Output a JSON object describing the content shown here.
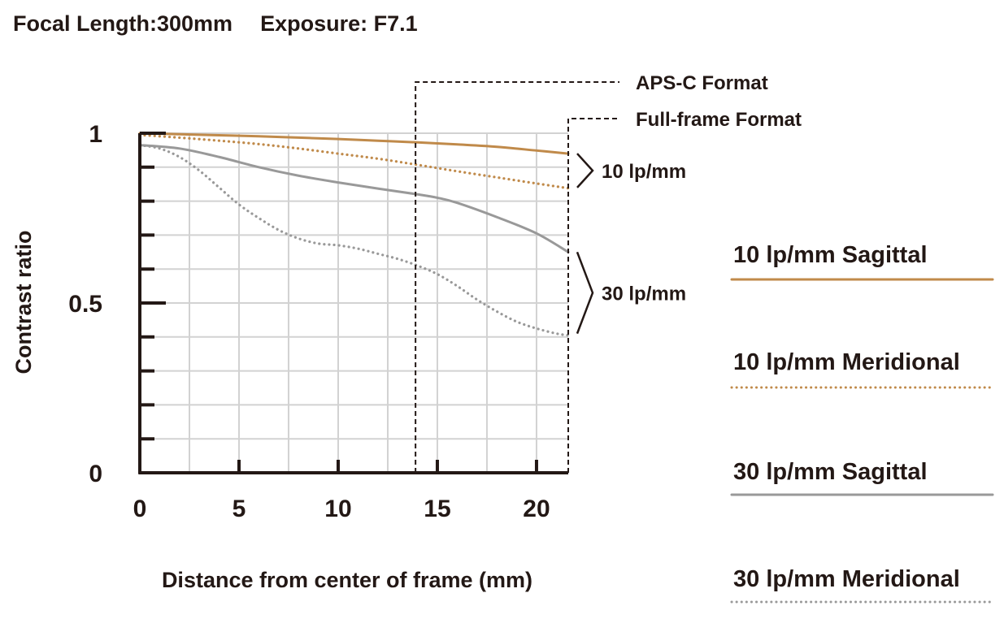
{
  "header": {
    "focal_length": "Focal Length:300mm",
    "exposure": "Exposure: F7.1"
  },
  "chart_data": {
    "type": "line",
    "xlabel": "Distance from center of frame (mm)",
    "ylabel": "Contrast ratio",
    "xlim": [
      0,
      21.6
    ],
    "ylim": [
      0,
      1
    ],
    "x_ticks": [
      0,
      5,
      10,
      15,
      20
    ],
    "y_ticks": [
      {
        "value": 0,
        "label": "0"
      },
      {
        "value": 0.5,
        "label": "0.5"
      },
      {
        "value": 1,
        "label": "1"
      }
    ],
    "y_minor_step": 0.1,
    "x_minor_step": 2.5,
    "grid": true,
    "legend_placement": "right",
    "format_markers": [
      {
        "label": "APS-C Format",
        "x": 13.9
      },
      {
        "label": "Full-frame Format",
        "x": 21.6
      }
    ],
    "group_labels": [
      {
        "label": "10 lp/mm",
        "y_range": [
          0.84,
          0.94
        ]
      },
      {
        "label": "30 lp/mm",
        "y_range": [
          0.41,
          0.65
        ]
      }
    ],
    "series": [
      {
        "name": "10 lp/mm Sagittal",
        "color": "#c08a4a",
        "dash": "solid",
        "x": [
          0,
          2,
          4,
          6,
          8,
          10,
          12,
          14,
          16,
          18,
          20,
          21.6
        ],
        "y": [
          1.0,
          0.997,
          0.994,
          0.991,
          0.987,
          0.983,
          0.978,
          0.973,
          0.967,
          0.96,
          0.949,
          0.94
        ]
      },
      {
        "name": "10 lp/mm Meridional",
        "color": "#c08a4a",
        "dash": "dotted",
        "x": [
          0,
          2,
          4,
          6,
          8,
          10,
          12,
          14,
          16,
          18,
          20,
          21.6
        ],
        "y": [
          0.995,
          0.987,
          0.978,
          0.968,
          0.955,
          0.94,
          0.925,
          0.907,
          0.888,
          0.87,
          0.852,
          0.838
        ]
      },
      {
        "name": "30 lp/mm Sagittal",
        "color": "#999999",
        "dash": "solid",
        "x": [
          0,
          2,
          4,
          6,
          8,
          10,
          12,
          14,
          15,
          16,
          18,
          20,
          21.6
        ],
        "y": [
          0.965,
          0.955,
          0.93,
          0.9,
          0.875,
          0.855,
          0.837,
          0.82,
          0.81,
          0.795,
          0.753,
          0.705,
          0.65
        ]
      },
      {
        "name": "30 lp/mm Meridional",
        "color": "#999999",
        "dash": "dotted",
        "x": [
          0,
          1,
          2,
          3,
          4,
          5,
          6,
          7,
          8,
          9,
          10,
          11,
          12,
          13,
          14,
          15,
          16,
          17,
          18,
          19,
          20,
          21,
          21.6
        ],
        "y": [
          0.965,
          0.955,
          0.93,
          0.89,
          0.84,
          0.79,
          0.75,
          0.715,
          0.69,
          0.675,
          0.67,
          0.66,
          0.645,
          0.63,
          0.61,
          0.585,
          0.55,
          0.51,
          0.475,
          0.445,
          0.425,
          0.41,
          0.405
        ]
      }
    ]
  }
}
